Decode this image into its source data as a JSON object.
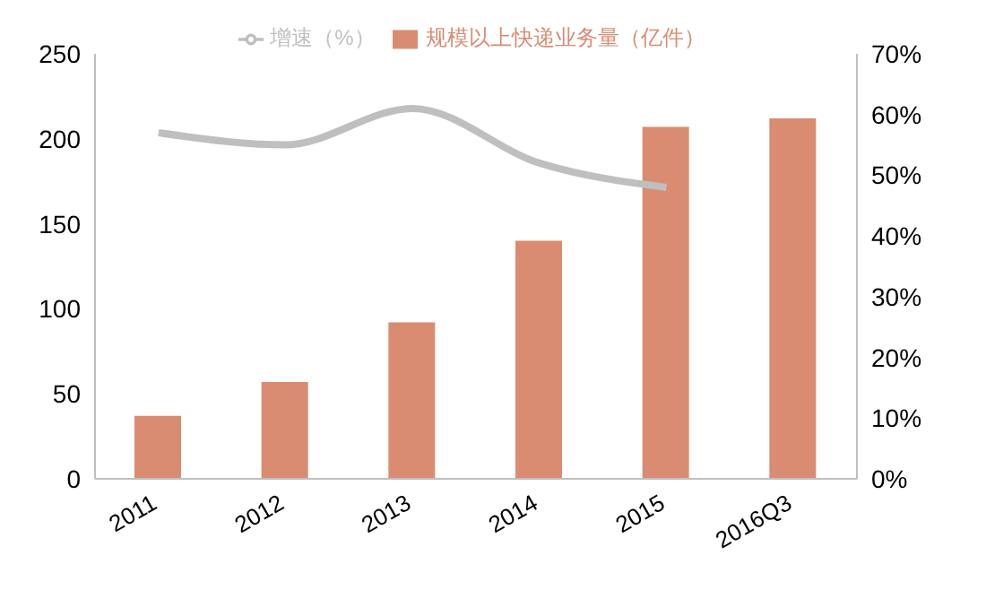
{
  "chart_data": {
    "type": "bar",
    "categories": [
      "2011",
      "2012",
      "2013",
      "2014",
      "2015",
      "2016Q3"
    ],
    "series": [
      {
        "name": "规模以上快递业务量（亿件）",
        "color": "#d98c72",
        "values": [
          37,
          57,
          92,
          140,
          207,
          212
        ]
      },
      {
        "name": "增速（%）",
        "type": "line",
        "axis": "y2",
        "color": "#bfbfbf",
        "values": [
          57,
          55,
          61,
          52,
          48,
          null
        ]
      }
    ],
    "ylim": [
      0,
      250
    ],
    "yticks": [
      0,
      50,
      100,
      150,
      200,
      250
    ],
    "y2lim": [
      0,
      70
    ],
    "y2ticks": [
      {
        "value": 0,
        "label": "0%"
      },
      {
        "value": 10,
        "label": "10%"
      },
      {
        "value": 20,
        "label": "20%"
      },
      {
        "value": 30,
        "label": "30%"
      },
      {
        "value": 40,
        "label": "40%"
      },
      {
        "value": 50,
        "label": "50%"
      },
      {
        "value": 60,
        "label": "60%"
      },
      {
        "value": 70,
        "label": "70%"
      }
    ],
    "legend": "top",
    "grid": false,
    "marker": "none"
  }
}
